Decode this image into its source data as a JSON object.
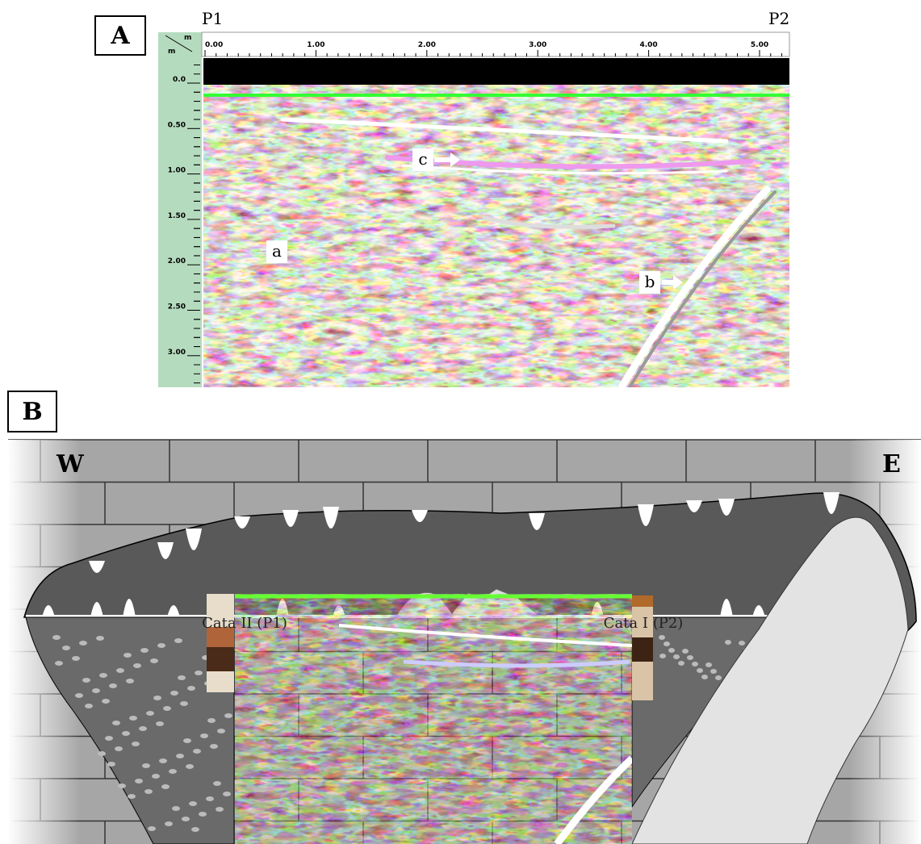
{
  "panel_a": {
    "label": "A",
    "left_marker": "P1",
    "right_marker": "P2",
    "scale_units": {
      "x": "m",
      "y": "m"
    },
    "x_ticks": [
      "0.00",
      "1.00",
      "2.00",
      "3.00",
      "4.00",
      "5.00"
    ],
    "y_ticks": [
      "0.0",
      "0.50",
      "1.00",
      "1.50",
      "2.00",
      "2.50",
      "3.00"
    ],
    "annotations": {
      "a": "a",
      "b": "b",
      "c": "c"
    }
  },
  "panel_b": {
    "label": "B",
    "west": "W",
    "east": "E",
    "left_pit": "Cata II (P1)",
    "right_pit": "Cata I (P2)"
  }
}
